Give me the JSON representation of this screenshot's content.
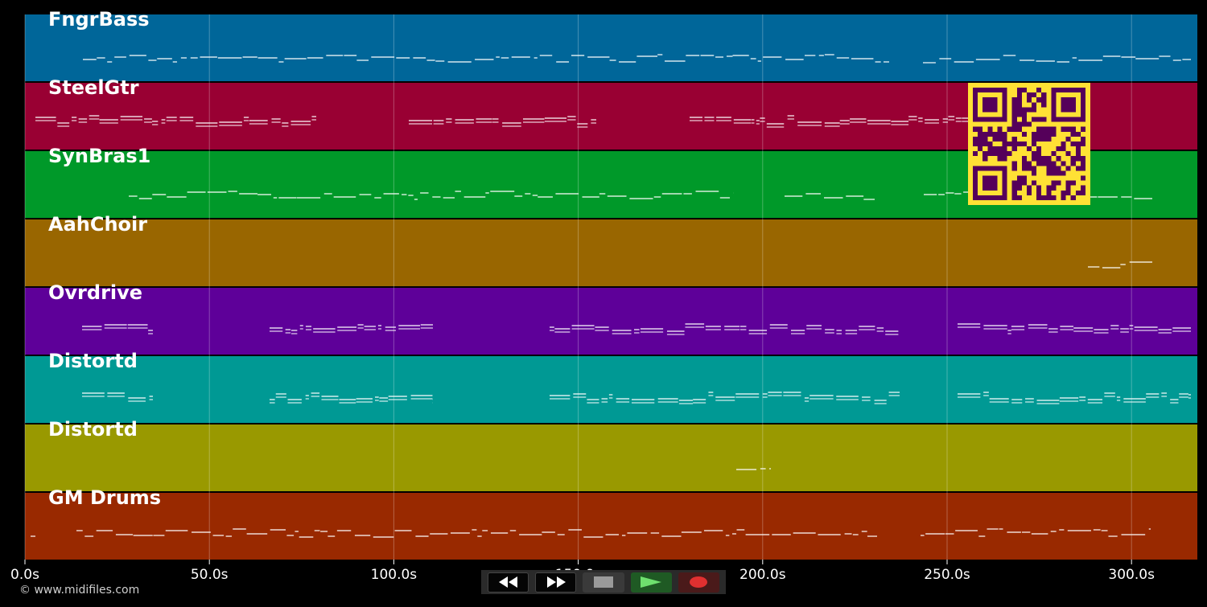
{
  "tracks": [
    {
      "name": "FngrBass",
      "color": "#006699"
    },
    {
      "name": "SteelGtr",
      "color": "#990033"
    },
    {
      "name": "SynBras1",
      "color": "#009929"
    },
    {
      "name": "AahChoir",
      "color": "#996600"
    },
    {
      "name": "Ovrdrive",
      "color": "#5e0099"
    },
    {
      "name": "Distortd",
      "color": "#009994"
    },
    {
      "name": "Distortd",
      "color": "#999900"
    },
    {
      "name": "GM Drums",
      "color": "#992900"
    }
  ],
  "time_axis": {
    "ticks": [
      "0.0s",
      "50.0s",
      "100.0s",
      "150.0s",
      "200.0s",
      "250.0s",
      "300.0s"
    ]
  },
  "transport": {
    "buttons": [
      {
        "name": "rewind",
        "icon": "rewind-icon"
      },
      {
        "name": "fast-forward",
        "icon": "fast-forward-icon"
      },
      {
        "name": "stop",
        "icon": "stop-icon"
      },
      {
        "name": "play",
        "icon": "play-icon"
      },
      {
        "name": "record",
        "icon": "record-icon"
      }
    ]
  },
  "footer": {
    "copyright": "© www.midifiles.com"
  },
  "qr": {
    "fg": "#ffe135",
    "bg": "#55005a"
  }
}
